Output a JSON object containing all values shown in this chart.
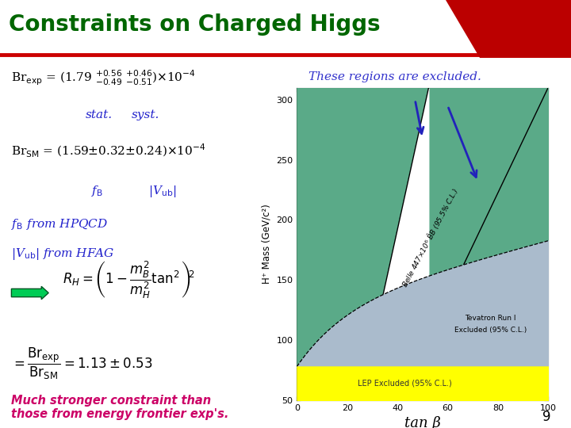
{
  "title": "Constraints on Charged Higgs",
  "title_color": "#006600",
  "title_bar_color": "#cc0000",
  "page_bg": "#ffffff",
  "green_color": "#5aaa88",
  "lep_color": "#ffff00",
  "tevatron_color": "#aabbcc",
  "xlim": [
    0,
    100
  ],
  "ylim": [
    50,
    310
  ],
  "xlabel": "tan β",
  "ylabel": "H⁺ Mass (GeV/c²)",
  "xticks": [
    0,
    20,
    40,
    60,
    80,
    100
  ],
  "yticks": [
    50,
    100,
    150,
    200,
    250,
    300
  ],
  "lep_limit": 78.0,
  "lep_label": "LEP Excluded (95% C.L.)",
  "tevatron_label": "Tevatron Run I\nExcluded (95% C.L.)",
  "belle_label": "Belle 447×10⁶ B̅B (95.5% C.L.)",
  "text_excluded": "These regions are excluded.",
  "text_excluded_color": "#3333cc",
  "arrow_color": "#2222bb",
  "bottom_text": "Much stronger constraint than\nthose from energy frontier exp's.",
  "bottom_text_color": "#cc0066",
  "page_num": "9",
  "slide_bg": "#f8f8f8"
}
